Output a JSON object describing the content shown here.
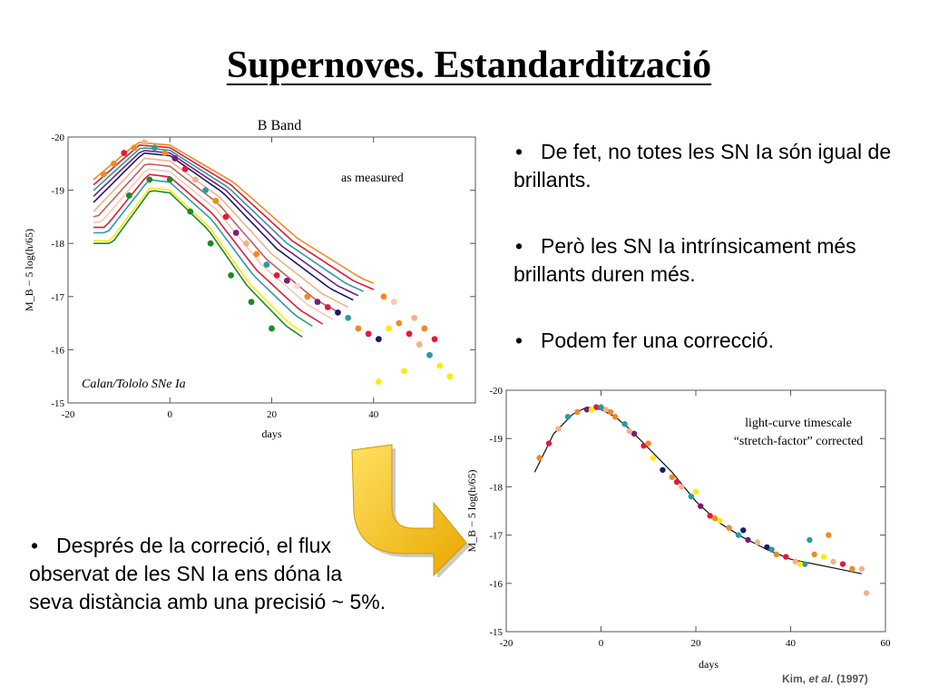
{
  "title": "Supernoves. Estandardització",
  "bullets_right": [
    "De fet, no totes les SN Ia són igual de brillants.",
    "Però les SN Ia intrínsicament més brillants duren més.",
    "Podem fer una correcció."
  ],
  "bullet_left": "Després de la correció, el flux observat de les SN Ia ens dóna la seva distància amb una precisió ~ 5%.",
  "credit": {
    "author": "Kim, ",
    "etal": "et al.",
    "year": " (1997)"
  },
  "colors": {
    "palette": [
      "#f08a24",
      "#e8173a",
      "#2a9c9c",
      "#7a1a7a",
      "#f3b18a",
      "#f0d8d0",
      "#1a1a6a",
      "#ffea00",
      "#1a8a2a",
      "#c06060",
      "#f8c8b0"
    ],
    "arrow": "#f5c518"
  },
  "chart_data": [
    {
      "type": "line",
      "title": "B Band",
      "annotation": "as measured",
      "label": "Calan/Tololo SNe Ia",
      "xlabel": "days",
      "ylabel": "M_B − 5 log(h/65)",
      "xlim": [
        -20,
        60
      ],
      "ylim": [
        -15,
        -20
      ],
      "x_ticks": [
        -20,
        0,
        20,
        40
      ],
      "y_ticks": [
        -20,
        -19,
        -18,
        -17,
        -16,
        -15
      ],
      "curve_model": {
        "x": [
          -15,
          -5,
          0,
          10,
          20,
          30,
          38
        ],
        "shape_dy": [
          1.0,
          0.0,
          0.05,
          0.75,
          1.8,
          2.55,
          2.95
        ]
      },
      "series": [
        {
          "color": "#f08a24",
          "peak": -19.9,
          "stretch": 1.25,
          "end": 40
        },
        {
          "color": "#e8173a",
          "peak": -19.85,
          "stretch": 1.2,
          "end": 40
        },
        {
          "color": "#2a9c9c",
          "peak": -19.8,
          "stretch": 1.15,
          "end": 38
        },
        {
          "color": "#7a1a7a",
          "peak": -19.75,
          "stretch": 1.1,
          "end": 37
        },
        {
          "color": "#1a1a6a",
          "peak": -19.7,
          "stretch": 1.05,
          "end": 36
        },
        {
          "color": "#f3b18a",
          "peak": -19.6,
          "stretch": 1.0,
          "end": 35
        },
        {
          "color": "#c06060",
          "peak": -19.5,
          "stretch": 0.95,
          "end": 33
        },
        {
          "color": "#f8c8b0",
          "peak": -19.4,
          "stretch": 0.9,
          "end": 32
        },
        {
          "color": "#e8173a",
          "peak": -19.3,
          "stretch": 0.85,
          "end": 30
        },
        {
          "color": "#2a9c9c",
          "peak": -19.2,
          "stretch": 0.82,
          "end": 28
        },
        {
          "color": "#ffea00",
          "peak": -19.05,
          "stretch": 0.78,
          "end": 26
        },
        {
          "color": "#1a8a2a",
          "peak": -19.0,
          "stretch": 0.76,
          "end": 26
        }
      ],
      "points": [
        [
          -13,
          -19.3,
          0
        ],
        [
          -11,
          -19.5,
          0
        ],
        [
          -9,
          -19.7,
          1
        ],
        [
          -7,
          -19.8,
          0
        ],
        [
          -5,
          -19.9,
          4
        ],
        [
          -3,
          -19.8,
          2
        ],
        [
          -1,
          -19.7,
          0
        ],
        [
          1,
          -19.6,
          3
        ],
        [
          3,
          -19.4,
          1
        ],
        [
          5,
          -19.2,
          4
        ],
        [
          7,
          -19.0,
          2
        ],
        [
          9,
          -18.8,
          0
        ],
        [
          11,
          -18.5,
          1
        ],
        [
          13,
          -18.2,
          3
        ],
        [
          15,
          -18.0,
          4
        ],
        [
          17,
          -17.8,
          0
        ],
        [
          19,
          -17.6,
          2
        ],
        [
          21,
          -17.4,
          1
        ],
        [
          23,
          -17.3,
          3
        ],
        [
          25,
          -17.2,
          5
        ],
        [
          27,
          -17.0,
          0
        ],
        [
          29,
          -16.9,
          3
        ],
        [
          31,
          -16.8,
          1
        ],
        [
          33,
          -16.7,
          6
        ],
        [
          35,
          -16.6,
          2
        ],
        [
          37,
          -16.4,
          0
        ],
        [
          39,
          -16.3,
          1
        ],
        [
          41,
          -16.2,
          6
        ],
        [
          43,
          -16.4,
          7
        ],
        [
          45,
          -16.5,
          0
        ],
        [
          47,
          -16.3,
          1
        ],
        [
          49,
          -16.1,
          4
        ],
        [
          51,
          -15.9,
          2
        ],
        [
          53,
          -15.7,
          7
        ],
        [
          55,
          -15.5,
          7
        ],
        [
          -8,
          -18.9,
          8
        ],
        [
          -4,
          -19.2,
          8
        ],
        [
          0,
          -19.2,
          8
        ],
        [
          4,
          -18.6,
          8
        ],
        [
          8,
          -18.0,
          8
        ],
        [
          12,
          -17.4,
          8
        ],
        [
          16,
          -16.9,
          8
        ],
        [
          20,
          -16.4,
          8
        ],
        [
          42,
          -17.0,
          0
        ],
        [
          44,
          -16.9,
          10
        ],
        [
          48,
          -16.6,
          4
        ],
        [
          50,
          -16.4,
          0
        ],
        [
          52,
          -16.2,
          1
        ],
        [
          46,
          -15.6,
          7
        ],
        [
          41,
          -15.4,
          7
        ]
      ]
    },
    {
      "type": "scatter",
      "annotation": "light-curve timescale “stretch-factor” corrected",
      "xlabel": "days",
      "ylabel": "M_B − 5 log(h/65)",
      "xlim": [
        -20,
        60
      ],
      "ylim": [
        -15,
        -20
      ],
      "x_ticks": [
        -20,
        0,
        20,
        40,
        60
      ],
      "y_ticks": [
        -20,
        -19,
        -18,
        -17,
        -16,
        -15
      ],
      "template": {
        "x": [
          -14,
          -10,
          -6,
          -3,
          0,
          3,
          6,
          10,
          15,
          20,
          25,
          30,
          35,
          40,
          45,
          50,
          55
        ],
        "y": [
          -18.3,
          -19.1,
          -19.5,
          -19.65,
          -19.6,
          -19.45,
          -19.2,
          -18.8,
          -18.3,
          -17.7,
          -17.25,
          -16.95,
          -16.7,
          -16.5,
          -16.4,
          -16.3,
          -16.2
        ]
      },
      "points": [
        [
          -13,
          -18.6,
          0
        ],
        [
          -11,
          -18.9,
          1
        ],
        [
          -9,
          -19.2,
          4
        ],
        [
          -7,
          -19.45,
          2
        ],
        [
          -5,
          -19.55,
          0
        ],
        [
          -3,
          -19.6,
          3
        ],
        [
          -1,
          -19.65,
          1
        ],
        [
          1,
          -19.6,
          4
        ],
        [
          3,
          -19.45,
          0
        ],
        [
          5,
          -19.3,
          2
        ],
        [
          7,
          -19.1,
          3
        ],
        [
          9,
          -18.85,
          1
        ],
        [
          11,
          -18.6,
          7
        ],
        [
          13,
          -18.35,
          6
        ],
        [
          15,
          -18.2,
          0
        ],
        [
          17,
          -18.0,
          4
        ],
        [
          19,
          -17.8,
          2
        ],
        [
          21,
          -17.6,
          3
        ],
        [
          23,
          -17.4,
          1
        ],
        [
          25,
          -17.3,
          7
        ],
        [
          27,
          -17.15,
          0
        ],
        [
          29,
          -17.0,
          2
        ],
        [
          31,
          -16.9,
          3
        ],
        [
          33,
          -16.85,
          4
        ],
        [
          35,
          -16.75,
          6
        ],
        [
          37,
          -16.6,
          0
        ],
        [
          39,
          -16.55,
          1
        ],
        [
          41,
          -16.45,
          4
        ],
        [
          43,
          -16.4,
          2
        ],
        [
          45,
          -16.6,
          0
        ],
        [
          47,
          -16.55,
          7
        ],
        [
          49,
          -16.45,
          4
        ],
        [
          51,
          -16.4,
          1
        ],
        [
          53,
          -16.3,
          0
        ],
        [
          55,
          -16.3,
          4
        ],
        [
          48,
          -17.0,
          0
        ],
        [
          44,
          -16.9,
          2
        ],
        [
          30,
          -17.1,
          6
        ],
        [
          20,
          -17.9,
          7
        ],
        [
          10,
          -18.9,
          0
        ],
        [
          0,
          -19.65,
          2
        ],
        [
          -2,
          -19.6,
          7
        ],
        [
          2,
          -19.55,
          0
        ],
        [
          6,
          -19.15,
          4
        ],
        [
          16,
          -18.1,
          1
        ],
        [
          24,
          -17.35,
          0
        ],
        [
          36,
          -16.7,
          2
        ],
        [
          42,
          -16.4,
          7
        ],
        [
          56,
          -15.8,
          4
        ]
      ]
    }
  ]
}
